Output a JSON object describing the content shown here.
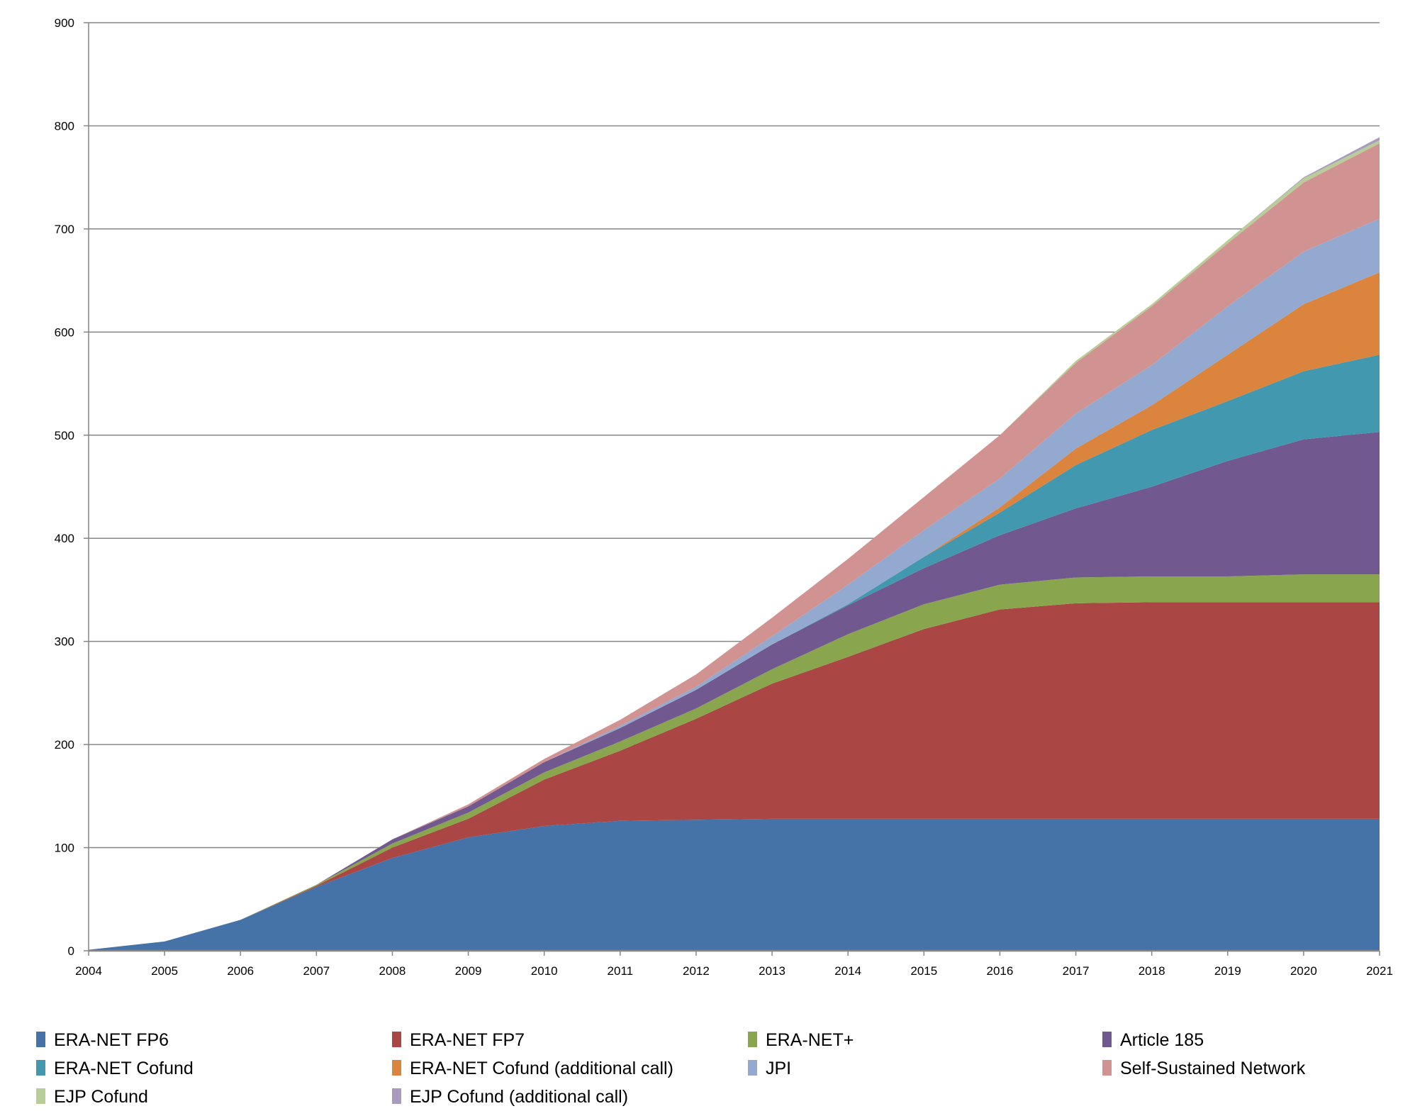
{
  "chart_data": {
    "type": "area",
    "stacked": true,
    "title": "",
    "xlabel": "",
    "ylabel": "",
    "ylim": [
      0,
      900
    ],
    "yticks": [
      0,
      100,
      200,
      300,
      400,
      500,
      600,
      700,
      800,
      900
    ],
    "grid": true,
    "legend_position": "bottom",
    "x": [
      "2004",
      "2005",
      "2006",
      "2007",
      "2008",
      "2009",
      "2010",
      "2011",
      "2012",
      "2013",
      "2014",
      "2015",
      "2016",
      "2017",
      "2018",
      "2019",
      "2020",
      "2021"
    ],
    "series": [
      {
        "name": "ERA-NET FP6",
        "color": "#4572A7",
        "values": [
          1,
          9,
          30,
          62,
          90,
          110,
          121,
          126,
          127,
          128,
          128,
          128,
          128,
          128,
          128,
          128,
          128,
          128
        ]
      },
      {
        "name": "ERA-NET FP7",
        "color": "#AA4643",
        "values": [
          0,
          0,
          0,
          1,
          10,
          18,
          45,
          68,
          98,
          131,
          157,
          184,
          203,
          209,
          210,
          210,
          210,
          210
        ]
      },
      {
        "name": "ERA-NET+",
        "color": "#89A54E",
        "values": [
          0,
          0,
          0,
          1,
          4,
          6,
          7,
          9,
          10,
          14,
          22,
          24,
          24,
          25,
          25,
          25,
          27,
          27
        ]
      },
      {
        "name": "Article 185",
        "color": "#71588F",
        "values": [
          0,
          0,
          0,
          0,
          4,
          6,
          10,
          13,
          18,
          24,
          28,
          35,
          48,
          67,
          87,
          112,
          131,
          138
        ]
      },
      {
        "name": "ERA-NET Cofund",
        "color": "#4198AF",
        "values": [
          0,
          0,
          0,
          0,
          0,
          0,
          0,
          0,
          0,
          0,
          1,
          11,
          22,
          42,
          55,
          58,
          66,
          75
        ]
      },
      {
        "name": "ERA-NET Cofund (additional call)",
        "color": "#DB843D",
        "values": [
          0,
          0,
          0,
          0,
          0,
          0,
          0,
          0,
          0,
          0,
          0,
          0,
          5,
          16,
          24,
          45,
          65,
          80
        ]
      },
      {
        "name": "JPI",
        "color": "#93A9CF",
        "values": [
          0,
          0,
          0,
          0,
          0,
          0,
          0,
          2,
          3,
          8,
          19,
          26,
          28,
          34,
          39,
          47,
          51,
          52
        ]
      },
      {
        "name": "Self-Sustained Network",
        "color": "#D19392",
        "values": [
          0,
          0,
          0,
          0,
          0,
          2,
          3,
          6,
          12,
          18,
          25,
          32,
          42,
          49,
          57,
          61,
          67,
          73
        ]
      },
      {
        "name": "EJP Cofund",
        "color": "#B9CD96",
        "values": [
          0,
          0,
          0,
          0,
          0,
          0,
          0,
          0,
          0,
          0,
          0,
          0,
          0,
          2,
          2,
          3,
          4,
          3
        ]
      },
      {
        "name": "EJP Cofund (additional call)",
        "color": "#A99BBD",
        "values": [
          0,
          0,
          0,
          0,
          0,
          0,
          0,
          0,
          0,
          0,
          0,
          0,
          0,
          0,
          0,
          0,
          1,
          3
        ]
      }
    ]
  }
}
